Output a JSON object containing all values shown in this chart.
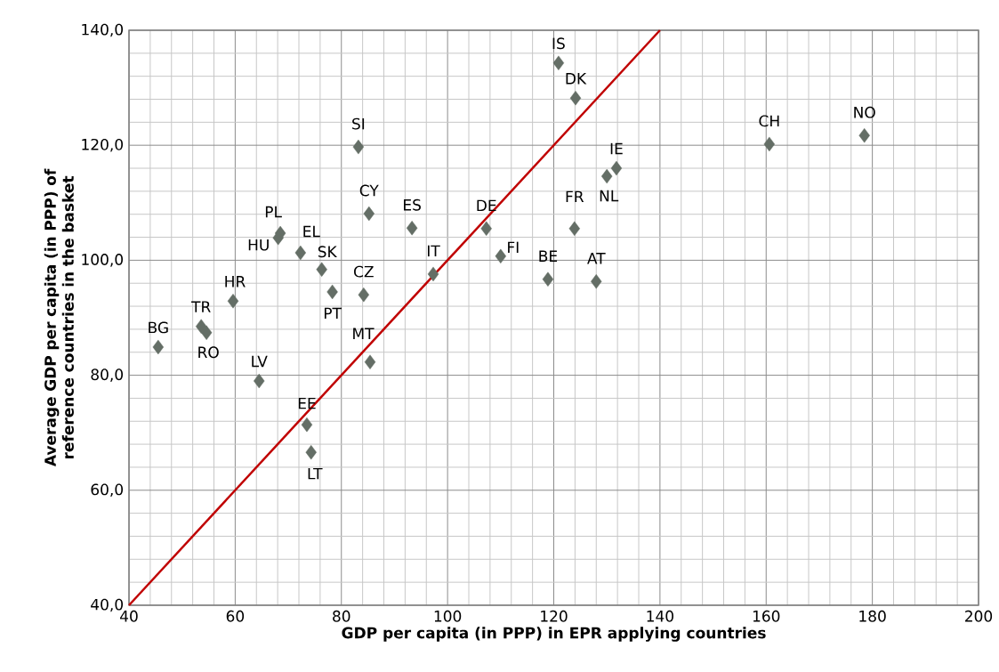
{
  "chart_data": {
    "type": "scatter",
    "xlabel": "GDP per capita (in PPP) in EPR applying countries",
    "ylabel": "Average GDP per capita (in PPP) of reference countries in the basket",
    "xlim": [
      40,
      200
    ],
    "ylim": [
      40,
      140
    ],
    "xticks": [
      40,
      60,
      80,
      100,
      120,
      140,
      160,
      180,
      200
    ],
    "yticks": [
      {
        "value": 40,
        "label": "40,0"
      },
      {
        "value": 60,
        "label": "60,0"
      },
      {
        "value": 80,
        "label": "80,0"
      },
      {
        "value": 100,
        "label": "100,0"
      },
      {
        "value": 120,
        "label": "120,0"
      },
      {
        "value": 140,
        "label": "140,0"
      }
    ],
    "grid": true,
    "marker": "diamond",
    "series": [
      {
        "color": "#646e66",
        "x": [
          45.5,
          53.6,
          54.6,
          59.6,
          64.5,
          68.5,
          68.1,
          72.3,
          76.3,
          78.3,
          84.2,
          85.4,
          73.5,
          74.3,
          83.2,
          85.2,
          93.3,
          97.3,
          107.3,
          110.0,
          118.9,
          123.9,
          128.0,
          130.0,
          131.8,
          120.9,
          124.1,
          160.6,
          178.5
        ],
        "values": [
          84.9,
          88.5,
          87.4,
          92.9,
          79.0,
          104.7,
          103.9,
          101.3,
          98.4,
          94.5,
          94.0,
          82.3,
          71.4,
          66.6,
          119.7,
          108.1,
          105.6,
          97.6,
          105.5,
          100.7,
          96.7,
          105.5,
          96.3,
          114.6,
          116.0,
          134.3,
          128.2,
          120.2,
          121.7
        ]
      },
      {
        "type": "line",
        "color": "#c00000",
        "marker": "none",
        "x": [
          40,
          140
        ],
        "values": [
          40,
          140
        ]
      }
    ],
    "annotations": [
      {
        "text": "BG",
        "x": 45.5,
        "y": 84.9
      },
      {
        "text": "TR",
        "x": 53.6,
        "y": 88.5
      },
      {
        "text": "RO",
        "x": 54.6,
        "y": 87.4
      },
      {
        "text": "HR",
        "x": 59.6,
        "y": 92.9
      },
      {
        "text": "LV",
        "x": 64.5,
        "y": 79.0
      },
      {
        "text": "PL",
        "x": 68.5,
        "y": 104.7
      },
      {
        "text": "HU",
        "x": 68.1,
        "y": 103.9
      },
      {
        "text": "EL",
        "x": 72.3,
        "y": 101.3
      },
      {
        "text": "SK",
        "x": 76.3,
        "y": 98.4
      },
      {
        "text": "PT",
        "x": 78.3,
        "y": 94.5
      },
      {
        "text": "CZ",
        "x": 84.2,
        "y": 94.0
      },
      {
        "text": "MT",
        "x": 85.4,
        "y": 82.3
      },
      {
        "text": "EE",
        "x": 73.5,
        "y": 71.4
      },
      {
        "text": "LT",
        "x": 74.3,
        "y": 66.6
      },
      {
        "text": "SI",
        "x": 83.2,
        "y": 119.7
      },
      {
        "text": "CY",
        "x": 85.2,
        "y": 108.1
      },
      {
        "text": "ES",
        "x": 93.3,
        "y": 105.6
      },
      {
        "text": "IT",
        "x": 97.3,
        "y": 97.6
      },
      {
        "text": "DE",
        "x": 107.3,
        "y": 105.5
      },
      {
        "text": "FI",
        "x": 110.0,
        "y": 100.7
      },
      {
        "text": "BE",
        "x": 118.9,
        "y": 96.7
      },
      {
        "text": "FR",
        "x": 123.9,
        "y": 105.5
      },
      {
        "text": "AT",
        "x": 128.0,
        "y": 96.3
      },
      {
        "text": "NL",
        "x": 130.0,
        "y": 114.6
      },
      {
        "text": "IE",
        "x": 131.8,
        "y": 116.0
      },
      {
        "text": "IS",
        "x": 120.9,
        "y": 134.3
      },
      {
        "text": "DK",
        "x": 124.1,
        "y": 128.2
      },
      {
        "text": "CH",
        "x": 160.6,
        "y": 120.2
      },
      {
        "text": "NO",
        "x": 178.5,
        "y": 121.7
      }
    ]
  }
}
